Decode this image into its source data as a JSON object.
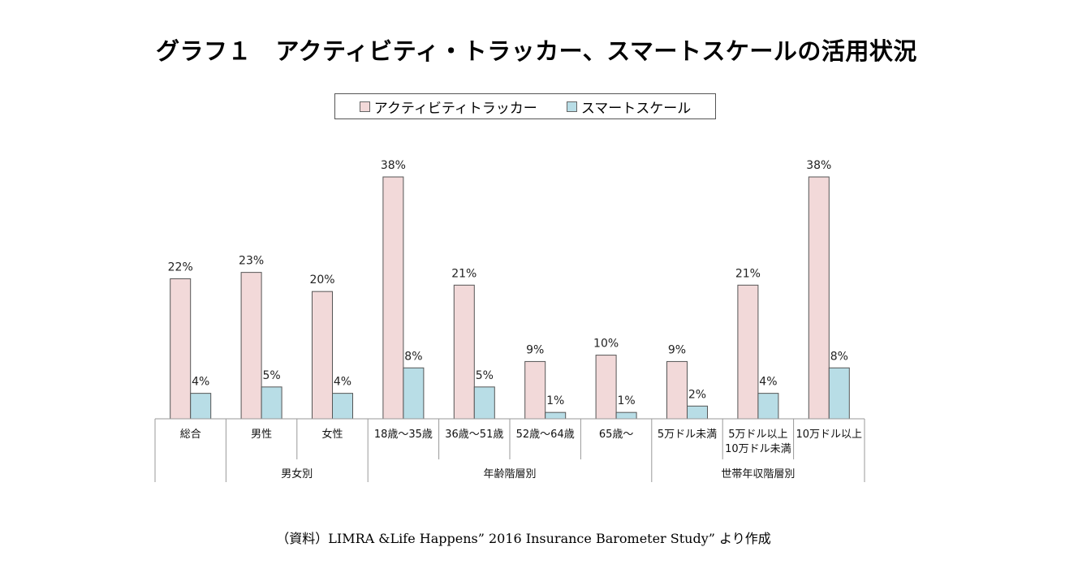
{
  "title": "グラフ１　アクティビティ・トラッカー、スマートスケールの活用状況",
  "source": "（資料）LIMRA &Life Happens” 2016 Insurance Barometer Study” より作成",
  "colors": {
    "activity_tracker": "#f2d9d9",
    "smart_scale": "#b8dde6",
    "bar_stroke": "#555555",
    "axis": "#999999"
  },
  "chart_data": {
    "type": "bar",
    "title": "グラフ１　アクティビティ・トラッカー、スマートスケールの活用状況",
    "categories": [
      "総合",
      "男性",
      "女性",
      "18歳～35歳",
      "36歳～51歳",
      "52歳～64歳",
      "65歳～",
      "5万ドル未満",
      "5万ドル以上\n10万ドル未満",
      "10万ドル以上"
    ],
    "category_lines": [
      [
        "総合"
      ],
      [
        "男性"
      ],
      [
        "女性"
      ],
      [
        "18歳～35歳"
      ],
      [
        "36歳～51歳"
      ],
      [
        "52歳～64歳"
      ],
      [
        "65歳～"
      ],
      [
        "5万ドル未満"
      ],
      [
        "5万ドル以上",
        "10万ドル未満"
      ],
      [
        "10万ドル以上"
      ]
    ],
    "groups": [
      {
        "label": "",
        "start": 0,
        "end": 0
      },
      {
        "label": "男女別",
        "start": 1,
        "end": 2
      },
      {
        "label": "年齢階層別",
        "start": 3,
        "end": 6
      },
      {
        "label": "世帯年収階層別",
        "start": 7,
        "end": 9
      }
    ],
    "series": [
      {
        "name": "アクティビティトラッカー",
        "values": [
          22,
          23,
          20,
          38,
          21,
          9,
          10,
          9,
          21,
          38
        ]
      },
      {
        "name": "スマートスケール",
        "values": [
          4,
          5,
          4,
          8,
          5,
          1,
          1,
          2,
          4,
          8
        ]
      }
    ],
    "value_suffix": "%",
    "ylim": [
      0,
      38
    ],
    "grid": false,
    "legend_position": "top"
  }
}
